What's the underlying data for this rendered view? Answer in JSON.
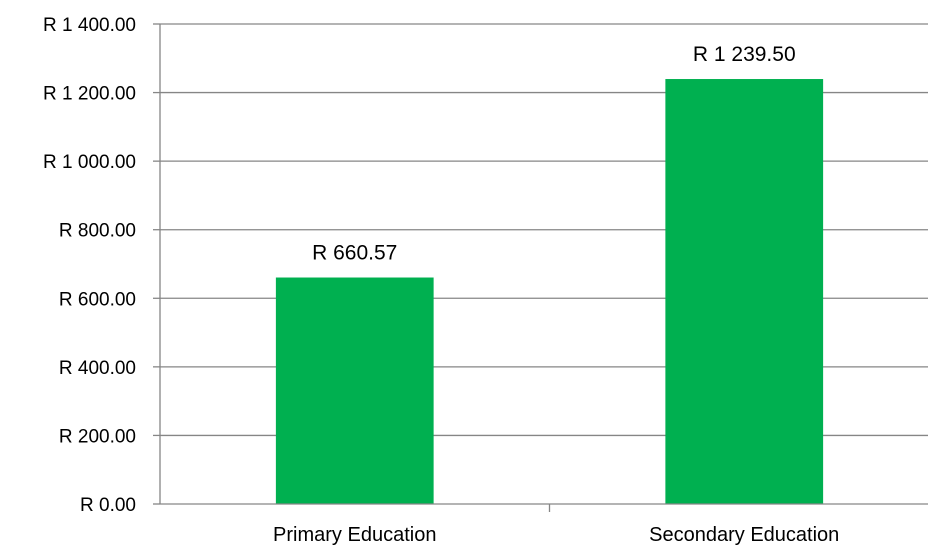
{
  "chart_data": {
    "type": "bar",
    "title": "",
    "xlabel": "",
    "ylabel": "",
    "categories": [
      "Primary Education",
      "Secondary Education"
    ],
    "values": [
      660.57,
      1239.5
    ],
    "data_labels": [
      "R 660.57",
      "R 1 239.50"
    ],
    "ylim": [
      0,
      1400
    ],
    "yticks": [
      0,
      200,
      400,
      600,
      800,
      1000,
      1200,
      1400
    ],
    "ytick_labels": [
      "R 0.00",
      "R 200.00",
      "R 400.00",
      "R 600.00",
      "R 800.00",
      "R 1 000.00",
      "R 1 200.00",
      "R 1 400.00"
    ],
    "grid": true,
    "legend": "none",
    "colors": {
      "bar": "#00B050",
      "grid": "#868686",
      "axis": "#868686"
    }
  }
}
